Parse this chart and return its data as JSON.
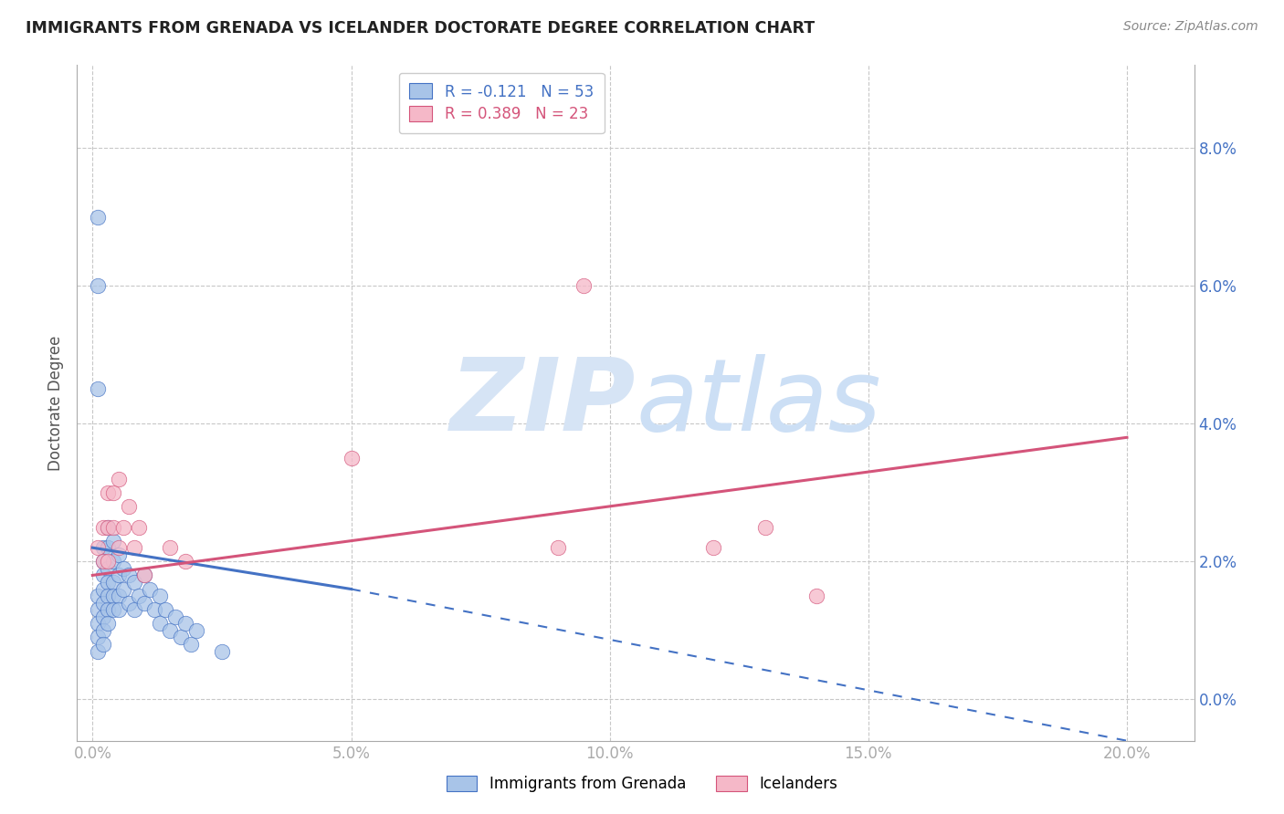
{
  "title": "IMMIGRANTS FROM GRENADA VS ICELANDER DOCTORATE DEGREE CORRELATION CHART",
  "source": "Source: ZipAtlas.com",
  "xlabel_ticks": [
    "0.0%",
    "5.0%",
    "10.0%",
    "15.0%",
    "20.0%"
  ],
  "xlabel_tick_vals": [
    0.0,
    0.05,
    0.1,
    0.15,
    0.2
  ],
  "ylabel_ticks": [
    "0.0%",
    "2.0%",
    "4.0%",
    "6.0%",
    "8.0%"
  ],
  "ylabel_tick_vals": [
    0.0,
    0.02,
    0.04,
    0.06,
    0.08
  ],
  "xlim": [
    -0.003,
    0.213
  ],
  "ylim": [
    -0.006,
    0.092
  ],
  "ylabel": "Doctorate Degree",
  "legend1_label": "Immigrants from Grenada",
  "legend2_label": "Icelanders",
  "R1": -0.121,
  "N1": 53,
  "R2": 0.389,
  "N2": 23,
  "color_blue": "#a8c4e8",
  "color_pink": "#f5b8c8",
  "color_blue_line": "#4472c4",
  "color_pink_line": "#d4547a",
  "color_blue_text": "#4472c4",
  "color_pink_text": "#d4547a",
  "background_color": "#ffffff",
  "blue_dots_x": [
    0.001,
    0.001,
    0.001,
    0.001,
    0.001,
    0.002,
    0.002,
    0.002,
    0.002,
    0.002,
    0.002,
    0.002,
    0.002,
    0.003,
    0.003,
    0.003,
    0.003,
    0.003,
    0.003,
    0.003,
    0.004,
    0.004,
    0.004,
    0.004,
    0.004,
    0.005,
    0.005,
    0.005,
    0.005,
    0.006,
    0.006,
    0.007,
    0.007,
    0.008,
    0.008,
    0.009,
    0.01,
    0.01,
    0.011,
    0.012,
    0.013,
    0.013,
    0.014,
    0.015,
    0.016,
    0.017,
    0.018,
    0.019,
    0.02,
    0.025,
    0.001,
    0.001,
    0.001
  ],
  "blue_dots_y": [
    0.015,
    0.013,
    0.011,
    0.009,
    0.007,
    0.022,
    0.02,
    0.018,
    0.016,
    0.014,
    0.012,
    0.01,
    0.008,
    0.025,
    0.022,
    0.019,
    0.017,
    0.015,
    0.013,
    0.011,
    0.023,
    0.02,
    0.017,
    0.015,
    0.013,
    0.021,
    0.018,
    0.015,
    0.013,
    0.019,
    0.016,
    0.018,
    0.014,
    0.017,
    0.013,
    0.015,
    0.018,
    0.014,
    0.016,
    0.013,
    0.015,
    0.011,
    0.013,
    0.01,
    0.012,
    0.009,
    0.011,
    0.008,
    0.01,
    0.007,
    0.06,
    0.07,
    0.045
  ],
  "pink_dots_x": [
    0.001,
    0.002,
    0.002,
    0.003,
    0.003,
    0.003,
    0.004,
    0.004,
    0.005,
    0.005,
    0.006,
    0.007,
    0.008,
    0.009,
    0.01,
    0.015,
    0.018,
    0.05,
    0.09,
    0.095,
    0.12,
    0.13,
    0.14
  ],
  "pink_dots_y": [
    0.022,
    0.025,
    0.02,
    0.03,
    0.025,
    0.02,
    0.03,
    0.025,
    0.032,
    0.022,
    0.025,
    0.028,
    0.022,
    0.025,
    0.018,
    0.022,
    0.02,
    0.035,
    0.022,
    0.06,
    0.022,
    0.025,
    0.015
  ],
  "blue_line_x0": 0.0,
  "blue_line_y0": 0.022,
  "blue_line_x1": 0.05,
  "blue_line_y1": 0.016,
  "blue_line_xdash_end": 0.2,
  "blue_line_ydash_end": -0.006,
  "pink_line_x0": 0.0,
  "pink_line_y0": 0.018,
  "pink_line_x1": 0.2,
  "pink_line_y1": 0.038
}
